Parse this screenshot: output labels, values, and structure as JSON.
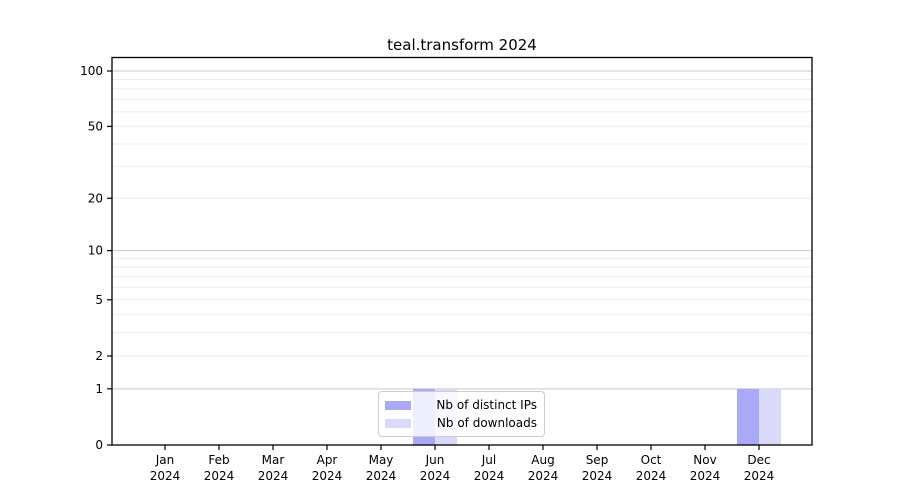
{
  "chart_data": {
    "type": "bar",
    "title": "teal.transform 2024",
    "x_categories": [
      "Jan",
      "Feb",
      "Mar",
      "Apr",
      "May",
      "Jun",
      "Jul",
      "Aug",
      "Sep",
      "Oct",
      "Nov",
      "Dec"
    ],
    "x_year": "2024",
    "series": [
      {
        "name": "Nb of distinct IPs",
        "color": "#a9a9f8",
        "values": [
          0,
          0,
          0,
          0,
          0,
          1,
          0,
          0,
          0,
          0,
          0,
          1
        ]
      },
      {
        "name": "Nb of downloads",
        "color": "#d9d9fa",
        "values": [
          0,
          0,
          0,
          0,
          0,
          1,
          0,
          0,
          0,
          0,
          0,
          1
        ]
      }
    ],
    "xlabel": "",
    "ylabel": "",
    "y_scale": "log1p",
    "y_ticks": [
      0,
      1,
      2,
      5,
      10,
      20,
      50,
      100
    ],
    "ylim": [
      0,
      119
    ],
    "grid": {
      "major_lines": [
        1,
        10,
        100
      ],
      "minor_lines": [
        2,
        3,
        4,
        5,
        6,
        7,
        8,
        9,
        20,
        30,
        40,
        50,
        60,
        70,
        80,
        90
      ],
      "major_color": "#c9c9c9",
      "minor_color": "#ececec"
    },
    "axis_color": "#000000",
    "legend_position": "bottom-center"
  }
}
